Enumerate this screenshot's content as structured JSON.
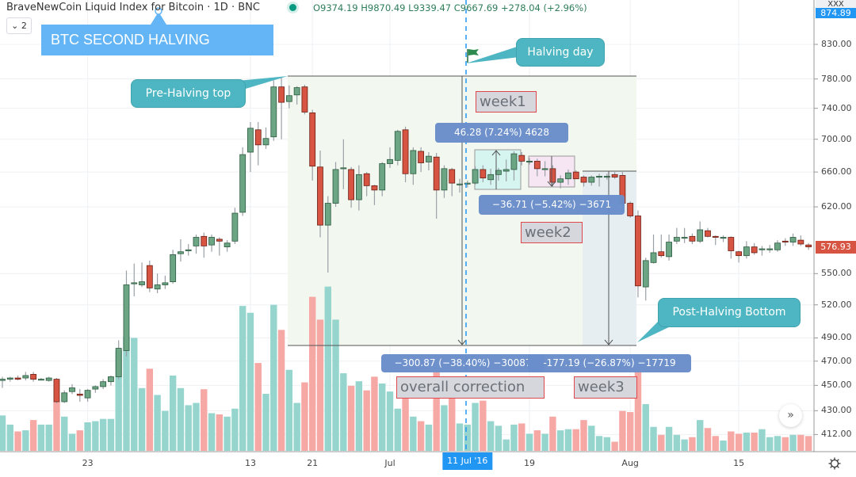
{
  "header": {
    "title": "BraveNewCoin Liquid Index for Bitcoin · 1D · BNC",
    "ohlc": "O9374.19 H9870.49 L9339.47 C9667.69 +278.04 (+2.96%)",
    "collapse_label": "⌄ 2"
  },
  "annotations": {
    "btc_halving": "BTC SECOND HALVING",
    "halving_day": "Halving day",
    "pre_halving_top": "Pre-Halving top",
    "post_halving_bottom": "Post-Halving Bottom",
    "week1": "week1",
    "week2": "week2",
    "week3": "week3",
    "overall_correction": "overall correction",
    "measure_week1": "46.28 (7.24%) 4628",
    "measure_week2": "−36.71 (−5.42%) −3671",
    "measure_overall": "−300.87 (−38.40%) −30087",
    "measure_week3": "-177.19 (−26.87%) −17719"
  },
  "price_axis": {
    "currency_label": "XXX",
    "top_label": "874.89",
    "last_price": "576.93",
    "ticks": [
      "830.00",
      "780.00",
      "740.00",
      "700.00",
      "660.00",
      "620.00",
      "550.00",
      "520.00",
      "490.00",
      "470.00",
      "450.00",
      "430.00",
      "412.00"
    ]
  },
  "time_axis": {
    "labels": [
      {
        "text": "23",
        "date": "2016-05-23"
      },
      {
        "text": "13",
        "date": "2016-06-13"
      },
      {
        "text": "21",
        "date": "2016-06-21"
      },
      {
        "text": "Jul",
        "date": "2016-07-01"
      },
      {
        "text": "19",
        "date": "2016-07-19"
      },
      {
        "text": "Aug",
        "date": "2016-08-01"
      },
      {
        "text": "15",
        "date": "2016-08-15"
      }
    ],
    "crosshair_label": "11 Jul '16",
    "crosshair_date": "2016-07-11"
  },
  "icons": {
    "settings": "gear-icon",
    "scroll": "double-chevron-right-icon",
    "flag": "flag-icon"
  },
  "colors": {
    "up": "#6ba583",
    "down": "#d75442",
    "vol_up": "#8fd3cb",
    "vol_down": "#f5a3a0",
    "callout": "#4db6c2",
    "measure": "#6a8ecb",
    "crosshair": "#2196f3"
  },
  "chart_data": {
    "type": "candlestick",
    "scale": "log",
    "ylim": [
      405,
      880
    ],
    "columns": [
      "date",
      "open",
      "high",
      "low",
      "close",
      "volume_relative"
    ],
    "candles": [
      [
        "2016-05-12",
        454,
        457,
        448,
        455,
        31
      ],
      [
        "2016-05-13",
        455,
        457,
        453,
        456,
        23
      ],
      [
        "2016-05-14",
        456,
        458,
        454,
        455,
        17
      ],
      [
        "2016-05-15",
        456,
        461,
        454,
        458,
        18
      ],
      [
        "2016-05-16",
        459,
        461,
        453,
        455,
        27
      ],
      [
        "2016-05-17",
        455,
        456,
        454,
        455,
        23
      ],
      [
        "2016-05-18",
        454,
        457,
        453,
        456,
        23
      ],
      [
        "2016-05-19",
        455,
        456,
        436,
        437,
        43
      ],
      [
        "2016-05-20",
        437,
        446,
        436,
        444,
        30
      ],
      [
        "2016-05-21",
        445,
        451,
        443,
        448,
        15
      ],
      [
        "2016-05-22",
        443,
        447,
        437,
        442,
        18
      ],
      [
        "2016-05-23",
        440,
        447,
        437,
        446,
        25
      ],
      [
        "2016-05-24",
        447,
        450,
        444,
        449,
        26
      ],
      [
        "2016-05-25",
        449,
        455,
        447,
        453,
        28
      ],
      [
        "2016-05-26",
        453,
        458,
        450,
        457,
        28
      ],
      [
        "2016-05-27",
        457,
        488,
        455,
        481,
        88
      ],
      [
        "2016-05-28",
        479,
        553,
        474,
        539,
        100
      ],
      [
        "2016-05-29",
        540,
        560,
        528,
        541,
        99
      ],
      [
        "2016-05-30",
        539,
        561,
        537,
        542,
        55
      ],
      [
        "2016-05-31",
        558,
        563,
        532,
        536,
        72
      ],
      [
        "2016-06-01",
        535,
        550,
        531,
        539,
        49
      ],
      [
        "2016-06-02",
        539,
        548,
        535,
        541,
        35
      ],
      [
        "2016-06-03",
        542,
        574,
        540,
        569,
        66
      ],
      [
        "2016-06-04",
        570,
        585,
        562,
        572,
        55
      ],
      [
        "2016-06-05",
        573,
        580,
        568,
        574,
        40
      ],
      [
        "2016-06-06",
        578,
        590,
        570,
        587,
        42
      ],
      [
        "2016-06-07",
        588,
        592,
        566,
        578,
        54
      ],
      [
        "2016-06-08",
        579,
        590,
        572,
        587,
        33
      ],
      [
        "2016-06-09",
        585,
        587,
        568,
        583,
        32
      ],
      [
        "2016-06-10",
        577,
        584,
        572,
        581,
        30
      ],
      [
        "2016-06-11",
        583,
        619,
        580,
        613,
        37
      ],
      [
        "2016-06-12",
        614,
        690,
        610,
        681,
        127
      ],
      [
        "2016-06-13",
        684,
        722,
        660,
        714,
        121
      ],
      [
        "2016-06-14",
        712,
        722,
        668,
        693,
        77
      ],
      [
        "2016-06-15",
        693,
        715,
        688,
        701,
        50
      ],
      [
        "2016-06-16",
        703,
        778,
        698,
        769,
        128
      ],
      [
        "2016-06-17",
        769,
        782,
        700,
        748,
        106
      ],
      [
        "2016-06-18",
        749,
        771,
        740,
        757,
        71
      ],
      [
        "2016-06-19",
        758,
        770,
        745,
        768,
        42
      ],
      [
        "2016-06-20",
        769,
        772,
        732,
        735,
        60
      ],
      [
        "2016-06-21",
        734,
        738,
        650,
        667,
        135
      ],
      [
        "2016-06-22",
        666,
        686,
        587,
        600,
        115
      ],
      [
        "2016-06-23",
        600,
        632,
        551,
        624,
        144
      ],
      [
        "2016-06-24",
        624,
        672,
        620,
        663,
        115
      ],
      [
        "2016-06-25",
        664,
        700,
        640,
        665,
        68
      ],
      [
        "2016-06-26",
        663,
        666,
        619,
        628,
        57
      ],
      [
        "2016-06-27",
        628,
        668,
        616,
        657,
        61
      ],
      [
        "2016-06-28",
        658,
        660,
        632,
        644,
        53
      ],
      [
        "2016-06-29",
        644,
        645,
        622,
        639,
        65
      ],
      [
        "2016-06-30",
        639,
        672,
        632,
        670,
        59
      ],
      [
        "2016-07-01",
        670,
        690,
        665,
        675,
        52
      ],
      [
        "2016-07-02",
        674,
        712,
        668,
        710,
        37
      ],
      [
        "2016-07-03",
        712,
        716,
        648,
        658,
        50
      ],
      [
        "2016-07-04",
        658,
        690,
        645,
        686,
        30
      ],
      [
        "2016-07-05",
        685,
        690,
        660,
        671,
        26
      ],
      [
        "2016-07-06",
        672,
        684,
        662,
        679,
        23
      ],
      [
        "2016-07-07",
        678,
        683,
        607,
        639,
        69
      ],
      [
        "2016-07-08",
        639,
        668,
        630,
        664,
        40
      ],
      [
        "2016-07-09",
        663,
        665,
        632,
        647,
        64
      ],
      [
        "2016-07-10",
        646,
        652,
        636,
        646,
        24
      ],
      [
        "2016-07-11",
        646,
        650,
        642,
        647,
        23
      ],
      [
        "2016-07-12",
        647,
        667,
        645,
        663,
        42
      ],
      [
        "2016-07-13",
        663,
        668,
        648,
        653,
        44
      ],
      [
        "2016-07-14",
        651,
        664,
        645,
        657,
        26
      ],
      [
        "2016-07-15",
        657,
        665,
        650,
        662,
        22
      ],
      [
        "2016-07-16",
        661,
        675,
        649,
        663,
        10
      ],
      [
        "2016-07-17",
        663,
        685,
        650,
        682,
        23
      ],
      [
        "2016-07-18",
        680,
        684,
        668,
        673,
        24
      ],
      [
        "2016-07-19",
        673,
        677,
        669,
        673,
        15
      ],
      [
        "2016-07-20",
        673,
        676,
        655,
        664,
        18
      ],
      [
        "2016-07-21",
        664,
        673,
        655,
        664,
        15
      ],
      [
        "2016-07-22",
        664,
        668,
        643,
        648,
        30
      ],
      [
        "2016-07-23",
        648,
        656,
        641,
        652,
        18
      ],
      [
        "2016-07-24",
        652,
        663,
        645,
        659,
        19
      ],
      [
        "2016-07-25",
        660,
        662,
        652,
        652,
        19
      ],
      [
        "2016-07-26",
        654,
        656,
        643,
        648,
        27
      ],
      [
        "2016-07-27",
        648,
        656,
        644,
        654,
        22
      ],
      [
        "2016-07-28",
        654,
        658,
        643,
        655,
        13
      ],
      [
        "2016-07-29",
        655,
        658,
        651,
        655,
        12
      ],
      [
        "2016-07-30",
        657,
        660,
        652,
        654,
        8
      ],
      [
        "2016-07-31",
        656,
        660,
        620,
        624,
        35
      ],
      [
        "2016-08-01",
        624,
        626,
        608,
        610,
        34
      ],
      [
        "2016-08-02",
        610,
        616,
        527,
        538,
        69
      ],
      [
        "2016-08-03",
        537,
        566,
        524,
        563,
        41
      ],
      [
        "2016-08-04",
        561,
        590,
        560,
        571,
        21
      ],
      [
        "2016-08-05",
        572,
        590,
        566,
        568,
        14
      ],
      [
        "2016-08-06",
        567,
        590,
        563,
        582,
        21
      ],
      [
        "2016-08-07",
        583,
        597,
        580,
        587,
        14
      ],
      [
        "2016-08-08",
        587,
        597,
        581,
        587,
        10
      ],
      [
        "2016-08-09",
        588,
        591,
        580,
        583,
        12
      ],
      [
        "2016-08-10",
        583,
        604,
        581,
        595,
        27
      ],
      [
        "2016-08-11",
        594,
        597,
        587,
        588,
        20
      ],
      [
        "2016-08-12",
        588,
        589,
        579,
        587,
        13
      ],
      [
        "2016-08-13",
        587,
        589,
        582,
        587,
        9
      ],
      [
        "2016-08-14",
        587,
        588,
        565,
        573,
        17
      ],
      [
        "2016-08-15",
        572,
        573,
        561,
        568,
        15
      ],
      [
        "2016-08-16",
        568,
        583,
        565,
        577,
        16
      ],
      [
        "2016-08-17",
        577,
        581,
        569,
        571,
        16
      ],
      [
        "2016-08-18",
        575,
        578,
        568,
        575,
        19
      ],
      [
        "2016-08-19",
        574,
        579,
        571,
        575,
        12
      ],
      [
        "2016-08-20",
        574,
        584,
        572,
        581,
        13
      ],
      [
        "2016-08-21",
        583,
        586,
        578,
        582,
        12
      ],
      [
        "2016-08-22",
        582,
        591,
        578,
        587,
        14
      ],
      [
        "2016-08-23",
        584,
        589,
        578,
        580,
        14
      ],
      [
        "2016-08-24",
        579,
        581,
        574,
        577,
        13
      ]
    ]
  }
}
